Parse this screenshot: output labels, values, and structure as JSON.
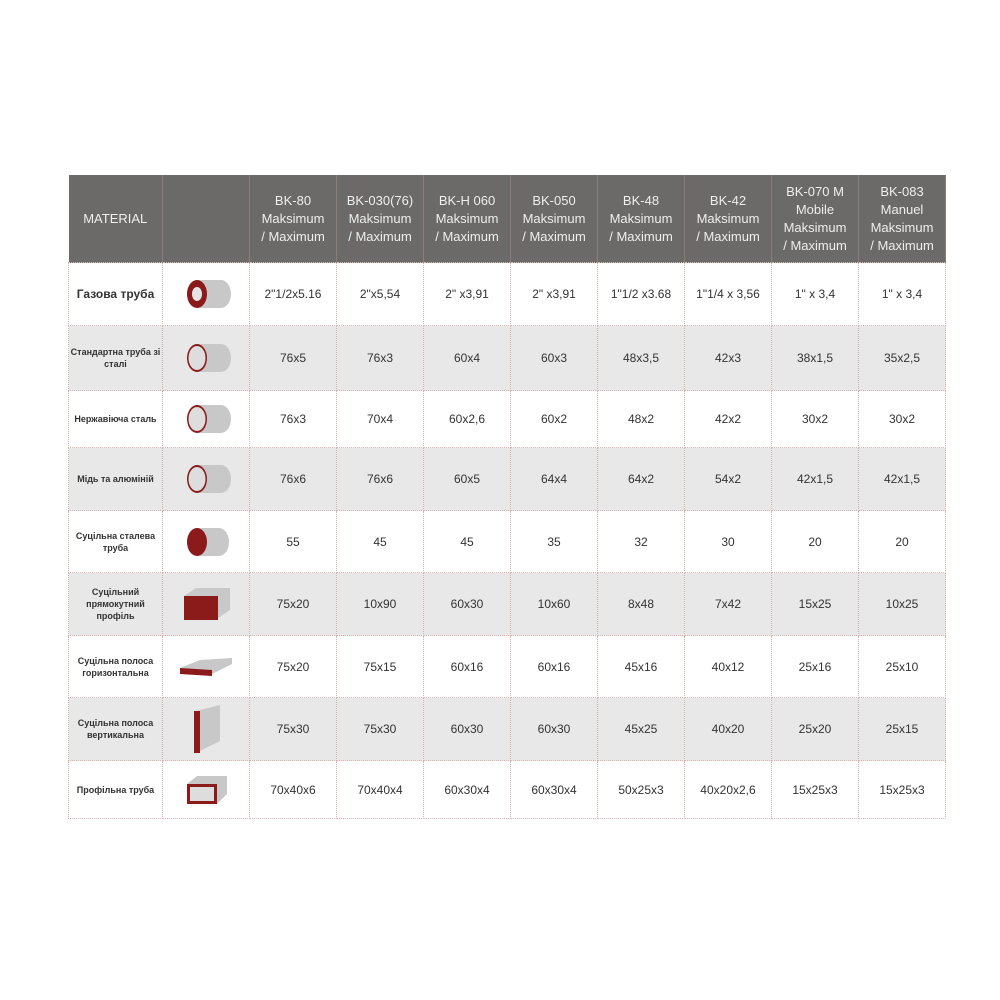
{
  "header": {
    "material": "MATERIAL",
    "models": [
      [
        "BK-80",
        "Maksimum",
        "/ Maximum"
      ],
      [
        "BK-030(76)",
        "Maksimum",
        "/ Maximum"
      ],
      [
        "BK-H 060",
        "Maksimum",
        "/ Maximum"
      ],
      [
        "BK-050",
        "Maksimum",
        "/ Maximum"
      ],
      [
        "BK-48",
        "Maksimum",
        "/ Maximum"
      ],
      [
        "BK-42",
        "Maksimum",
        "/ Maximum"
      ],
      [
        "BK-070 M",
        "Mobile",
        "Maksimum",
        "/ Maximum"
      ],
      [
        "BK-083",
        "Manuel",
        "Maksimum",
        "/ Maximum"
      ]
    ]
  },
  "rows": [
    {
      "material": "Газова труба",
      "icon": "thick-pipe-icon",
      "values": [
        "2\"1/2x5.16",
        "2\"x5,54",
        "2\" x3,91",
        "2\" x3,91",
        "1\"1/2 x3.68",
        "1\"1/4 x 3,56",
        "1\" x 3,4",
        "1\" x 3,4"
      ]
    },
    {
      "material": "Стандартна труба зі сталі",
      "icon": "pipe-icon",
      "values": [
        "76x5",
        "76x3",
        "60x4",
        "60x3",
        "48x3,5",
        "42x3",
        "38x1,5",
        "35x2,5"
      ]
    },
    {
      "material": "Нержавіюча сталь",
      "icon": "pipe-icon",
      "values": [
        "76x3",
        "70x4",
        "60x2,6",
        "60x2",
        "48x2",
        "42x2",
        "30x2",
        "30x2"
      ]
    },
    {
      "material": "Мідь та алюміній",
      "icon": "pipe-icon",
      "values": [
        "76x6",
        "76x6",
        "60x5",
        "64x4",
        "64x2",
        "54x2",
        "42x1,5",
        "42x1,5"
      ]
    },
    {
      "material": "Суцільна сталева труба",
      "icon": "solid-bar-icon",
      "values": [
        "55",
        "45",
        "45",
        "35",
        "32",
        "30",
        "20",
        "20"
      ]
    },
    {
      "material": "Суцільний прямокутний профіль",
      "icon": "solid-rectangle-icon",
      "values": [
        "75x20",
        "10x90",
        "60x30",
        "10x60",
        "8x48",
        "7x42",
        "15x25",
        "10x25"
      ]
    },
    {
      "material": "Суцільна полоса горизонтальна",
      "icon": "flat-bar-horizontal-icon",
      "values": [
        "75x20",
        "75x15",
        "60x16",
        "60x16",
        "45x16",
        "40x12",
        "25x16",
        "25x10"
      ]
    },
    {
      "material": "Суцільна полоса вертикальна",
      "icon": "flat-bar-vertical-icon",
      "values": [
        "75x30",
        "75x30",
        "60x30",
        "60x30",
        "45x25",
        "40x20",
        "25x20",
        "25x15"
      ]
    },
    {
      "material": "Профільна труба",
      "icon": "rectangular-tube-icon",
      "values": [
        "70x40x6",
        "70x40x4",
        "60x30x4",
        "60x30x4",
        "50x25x3",
        "40x20x2,6",
        "15x25x3",
        "15x25x3"
      ]
    }
  ],
  "colors": {
    "header": "#6b6a69",
    "accent": "#8b1a1a",
    "stripe": "#e8e8e8"
  }
}
